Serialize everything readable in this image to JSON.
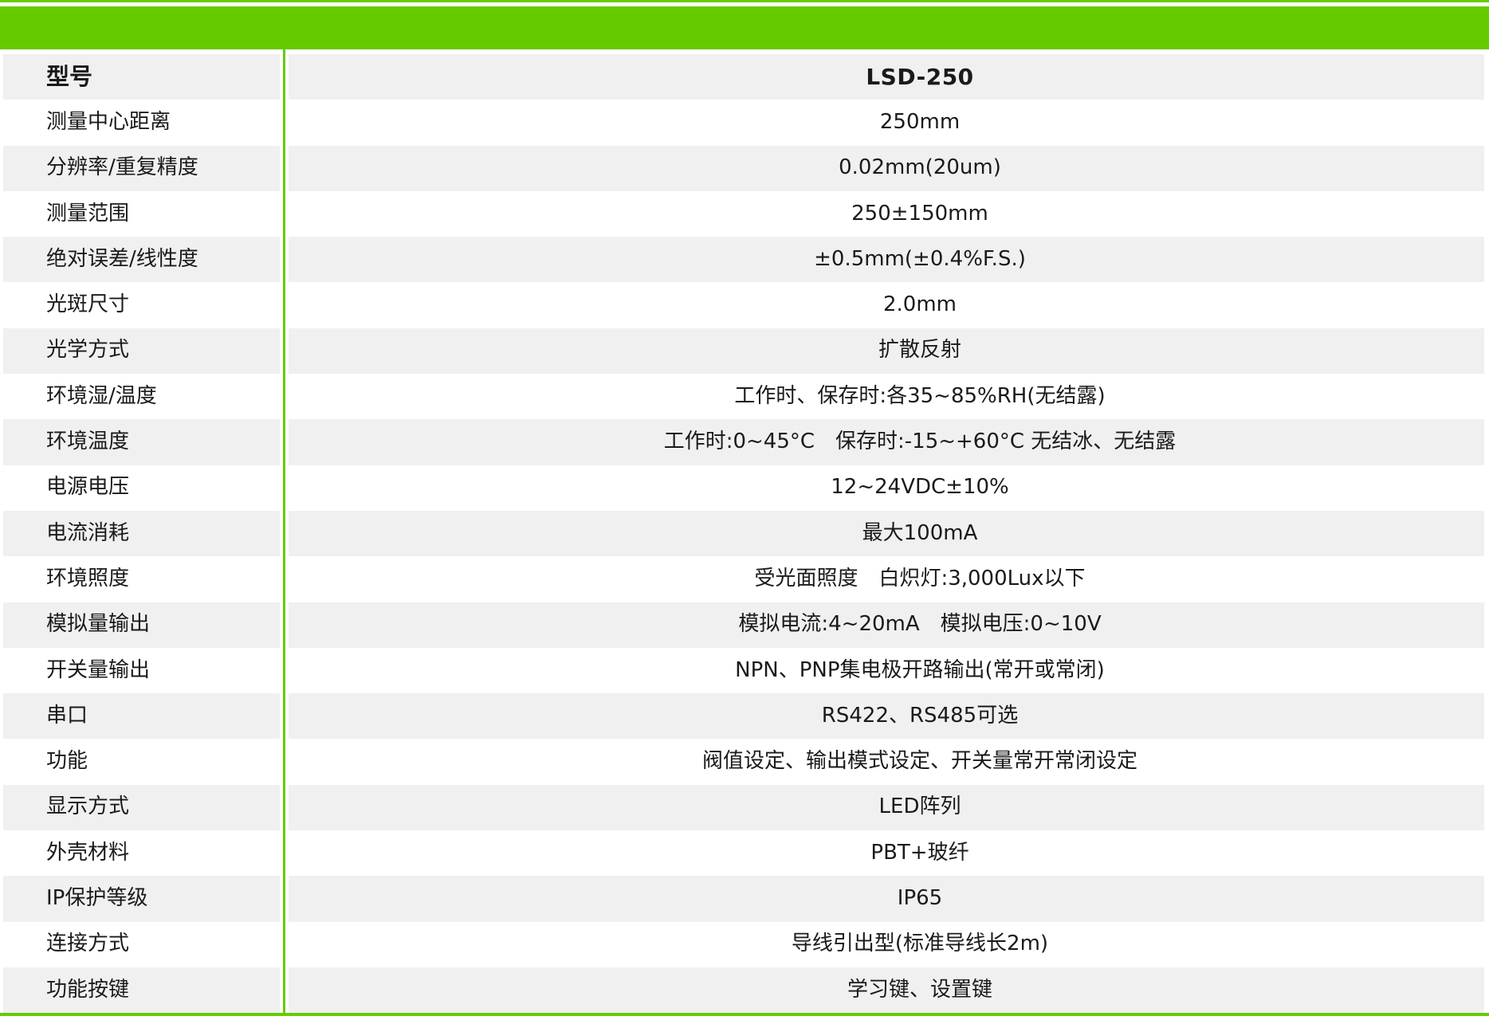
{
  "colors": {
    "accent_green": "#65cb01",
    "row_alt_background": "#f0f0f0",
    "text": "#1a1a1a"
  },
  "table": {
    "rows": [
      {
        "label": "型号",
        "value": "LSD-250",
        "header": true
      },
      {
        "label": "测量中心距离",
        "value": "250mm",
        "header": false
      },
      {
        "label": "分辨率/重复精度",
        "value": "0.02mm(20um)",
        "header": false
      },
      {
        "label": "测量范围",
        "value": "250±150mm",
        "header": false
      },
      {
        "label": "绝对误差/线性度",
        "value": "±0.5mm(±0.4%F.S.)",
        "header": false
      },
      {
        "label": "光斑尺寸",
        "value": "2.0mm",
        "header": false
      },
      {
        "label": "光学方式",
        "value": "扩散反射",
        "header": false
      },
      {
        "label": "环境湿/温度",
        "value": "工作时、保存时:各35~85%RH(无结露)",
        "header": false
      },
      {
        "label": "环境温度",
        "value": "工作时:0~45°C　保存时:-15~+60°C 无结冰、无结露",
        "header": false
      },
      {
        "label": "电源电压",
        "value": "12~24VDC±10%",
        "header": false
      },
      {
        "label": "电流消耗",
        "value": "最大100mA",
        "header": false
      },
      {
        "label": "环境照度",
        "value": "受光面照度　白炽灯:3,000Lux以下",
        "header": false
      },
      {
        "label": "模拟量输出",
        "value": "模拟电流:4~20mA　模拟电压:0~10V",
        "header": false
      },
      {
        "label": "开关量输出",
        "value": "NPN、PNP集电极开路输出(常开或常闭)",
        "header": false
      },
      {
        "label": "串口",
        "value": "RS422、RS485可选",
        "header": false
      },
      {
        "label": "功能",
        "value": "阀值设定、输出模式设定、开关量常开常闭设定",
        "header": false
      },
      {
        "label": "显示方式",
        "value": "LED阵列",
        "header": false
      },
      {
        "label": "外壳材料",
        "value": "PBT+玻纤",
        "header": false
      },
      {
        "label": "IP保护等级",
        "value": "IP65",
        "header": false
      },
      {
        "label": "连接方式",
        "value": "导线引出型(标准导线长2m)",
        "header": false
      },
      {
        "label": "功能按键",
        "value": "学习键、设置键",
        "header": false
      }
    ]
  }
}
